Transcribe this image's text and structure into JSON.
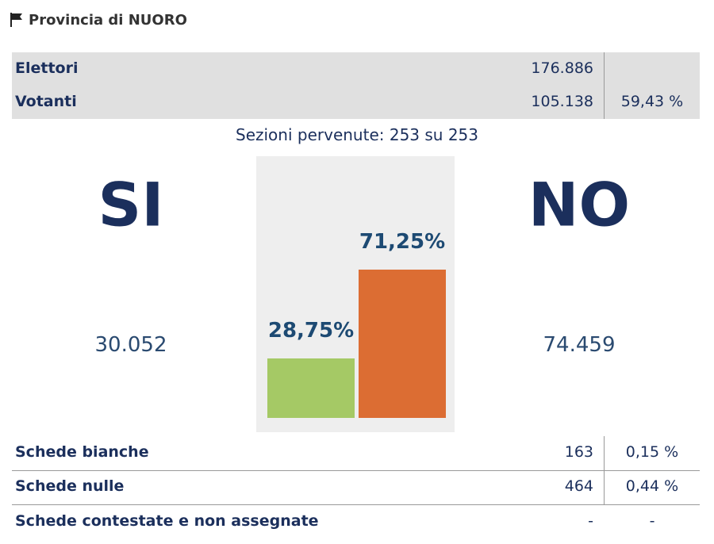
{
  "header": {
    "title": "Provincia di NUORO"
  },
  "summary": {
    "rows": [
      {
        "label": "Elettori",
        "value": "176.886"
      },
      {
        "label": "Votanti",
        "value": "105.138",
        "percent": "59,43 %"
      }
    ]
  },
  "sections": "Sezioni pervenute: 253 su 253",
  "results": {
    "si": {
      "label": "SI",
      "votes": "30.052",
      "percent": {
        "value": 28.75,
        "label": "28,75%"
      },
      "color": "#a5c965"
    },
    "no": {
      "label": "NO",
      "votes": "74.459",
      "percent": {
        "value": 71.25,
        "label": "71,25%"
      },
      "color": "#dc6d33"
    }
  },
  "ballots": {
    "rows": [
      {
        "label": "Schede bianche",
        "value": "163",
        "percent": "0,15 %"
      },
      {
        "label": "Schede nulle",
        "value": "464",
        "percent": "0,44 %"
      },
      {
        "label": "Schede contestate e non assegnate",
        "value": "-",
        "percent": "-"
      }
    ]
  }
}
